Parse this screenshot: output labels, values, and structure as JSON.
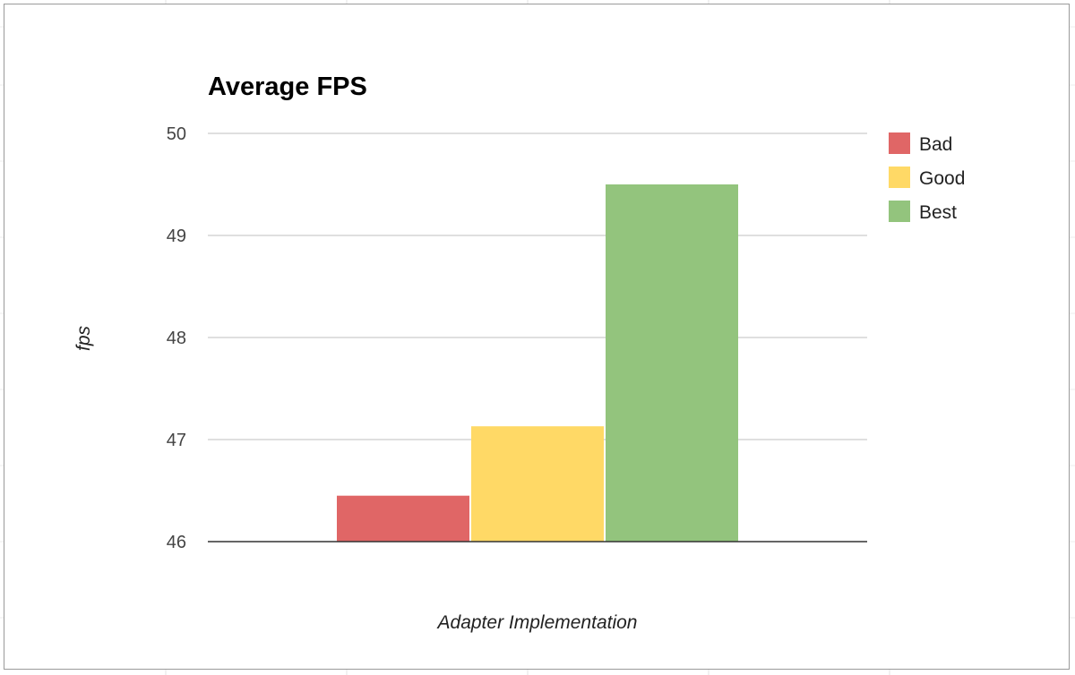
{
  "chart_data": {
    "type": "bar",
    "title": "Average FPS",
    "xlabel": "Adapter Implementation",
    "ylabel": "fps",
    "ylim": [
      46,
      50
    ],
    "yticks": [
      "46",
      "47",
      "48",
      "49",
      "50"
    ],
    "grid": true,
    "legend_position": "right",
    "categories": [
      ""
    ],
    "series": [
      {
        "name": "Bad",
        "values": [
          46.45
        ],
        "color": "#e06666"
      },
      {
        "name": "Good",
        "values": [
          47.13
        ],
        "color": "#ffd966"
      },
      {
        "name": "Best",
        "values": [
          49.5
        ],
        "color": "#93c47d"
      }
    ]
  }
}
